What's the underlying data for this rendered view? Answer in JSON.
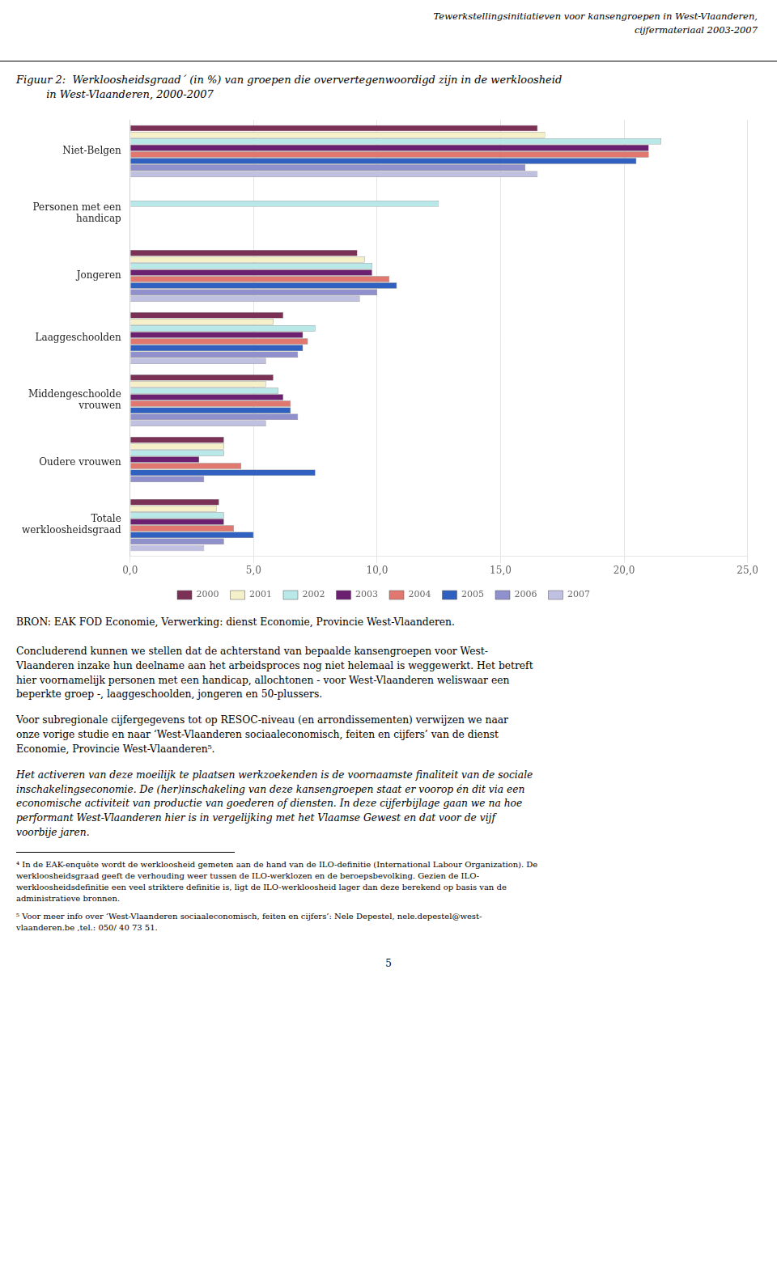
{
  "chart_data": {
    "type": "bar",
    "orientation": "horizontal",
    "title": "Figuur 2:  Werkloosheidsgraad´ (in %) van groepen die oververtegenwoordigd zijn in de werkloosheid\n         in West-Vlaanderen, 2000-2007",
    "categories": [
      "Niet-Belgen",
      "Personen met een\nhandicap",
      "Jongeren",
      "Laaggeschoolden",
      "Middengeschoolde\nvrouwen",
      "Oudere vrouwen",
      "Totale\nwerkloosheidsgraad"
    ],
    "series": [
      {
        "name": "2000",
        "color": "#7B3056",
        "values": [
          16.5,
          null,
          9.2,
          6.2,
          5.8,
          3.8,
          3.6
        ]
      },
      {
        "name": "2001",
        "color": "#F5F0C8",
        "values": [
          16.8,
          null,
          9.5,
          5.8,
          5.5,
          3.8,
          3.5
        ]
      },
      {
        "name": "2002",
        "color": "#B8E8E8",
        "values": [
          21.5,
          12.5,
          9.8,
          7.5,
          6.0,
          3.8,
          3.8
        ]
      },
      {
        "name": "2003",
        "color": "#6B2070",
        "values": [
          21.0,
          null,
          9.8,
          7.0,
          6.2,
          2.8,
          3.8
        ]
      },
      {
        "name": "2004",
        "color": "#E07870",
        "values": [
          21.0,
          null,
          10.5,
          7.2,
          6.5,
          4.5,
          4.2
        ]
      },
      {
        "name": "2005",
        "color": "#3060C0",
        "values": [
          20.5,
          null,
          10.8,
          7.0,
          6.5,
          7.5,
          5.0
        ]
      },
      {
        "name": "2006",
        "color": "#9090CC",
        "values": [
          16.0,
          null,
          10.0,
          6.8,
          6.8,
          3.0,
          3.8
        ]
      },
      {
        "name": "2007",
        "color": "#C0C0E0",
        "values": [
          16.5,
          null,
          9.3,
          5.5,
          5.5,
          null,
          3.0
        ]
      }
    ],
    "xlim": [
      0,
      25.0
    ],
    "xticks": [
      {
        "value": 0.0,
        "label": "0,0"
      },
      {
        "value": 5.0,
        "label": "5,0"
      },
      {
        "value": 10.0,
        "label": "10,0"
      },
      {
        "value": 15.0,
        "label": "15,0"
      },
      {
        "value": 20.0,
        "label": "20,0"
      },
      {
        "value": 25.0,
        "label": "25,0"
      }
    ],
    "grid": true,
    "legend": "bottom",
    "annotations": [
      "Tewerkstellingsinitiatieven voor kansengroepen in West-Vlaanderen,",
      "cijfermateriaal 2003-2007",
      "BRON: EAK FOD Economie, Verwerking: dienst Economie, Provincie West-Vlaanderen.",
      "Concluderend kunnen we stellen dat de achterstand van bepaalde kansengroepen voor West-\nVlaanderen inzake hun deelname aan het arbeidsproces nog niet helemaal is weggewerkt. Het betreft\nhier voornamelijk personen met een handicap, allochtonen - voor West-Vlaanderen weliswaar een\nbeperkte groep -, laaggeschoolden, jongeren en 50-plussers.",
      "Voor subregionale cijfergegevens tot op RESOC-niveau (en arrondissementen) verwijzen we naar\nonze vorige studie en naar ‘West-Vlaanderen sociaaleconomisch, feiten en cijfers’ van de dienst\nEconomie, Provincie West-Vlaanderen⁵.",
      "Het activeren van deze moeilijk te plaatsen werkzoekenden is de voornaamste finaliteit van de sociale\ninschakelingseconomie. De (her)inschakeling van deze kansengroepen staat er voorop én dit via een\neconomische activiteit van productie van goederen of diensten. In deze cijferbijlage gaan we na hoe\nperformant West-Vlaanderen hier is in vergelijking met het Vlaamse Gewest en dat voor de vijf\nvoorbije jaren.",
      "⁴ In de EAK-enquête wordt de werkloosheid gemeten aan de hand van de ILO-definitie (International Labour Organization). De\nwerkloosheidsgraad geeft de verhouding weer tussen de ILO-werklozen en de beroepsbevolking. Gezien de ILO-\nwerkloosheidsdefinitie een veel striktere definitie is, ligt de ILO-werkloosheid lager dan deze berekend op basis van de\nadministratieve bronnen.",
      "⁵ Voor meer info over ‘West-Vlaanderen sociaaleconomisch, feiten en cijfers’: Nele Depestel, nele.depestel@west-\nvlaanderen.be ,tel.: 050/ 40 73 51.",
      "5"
    ]
  }
}
